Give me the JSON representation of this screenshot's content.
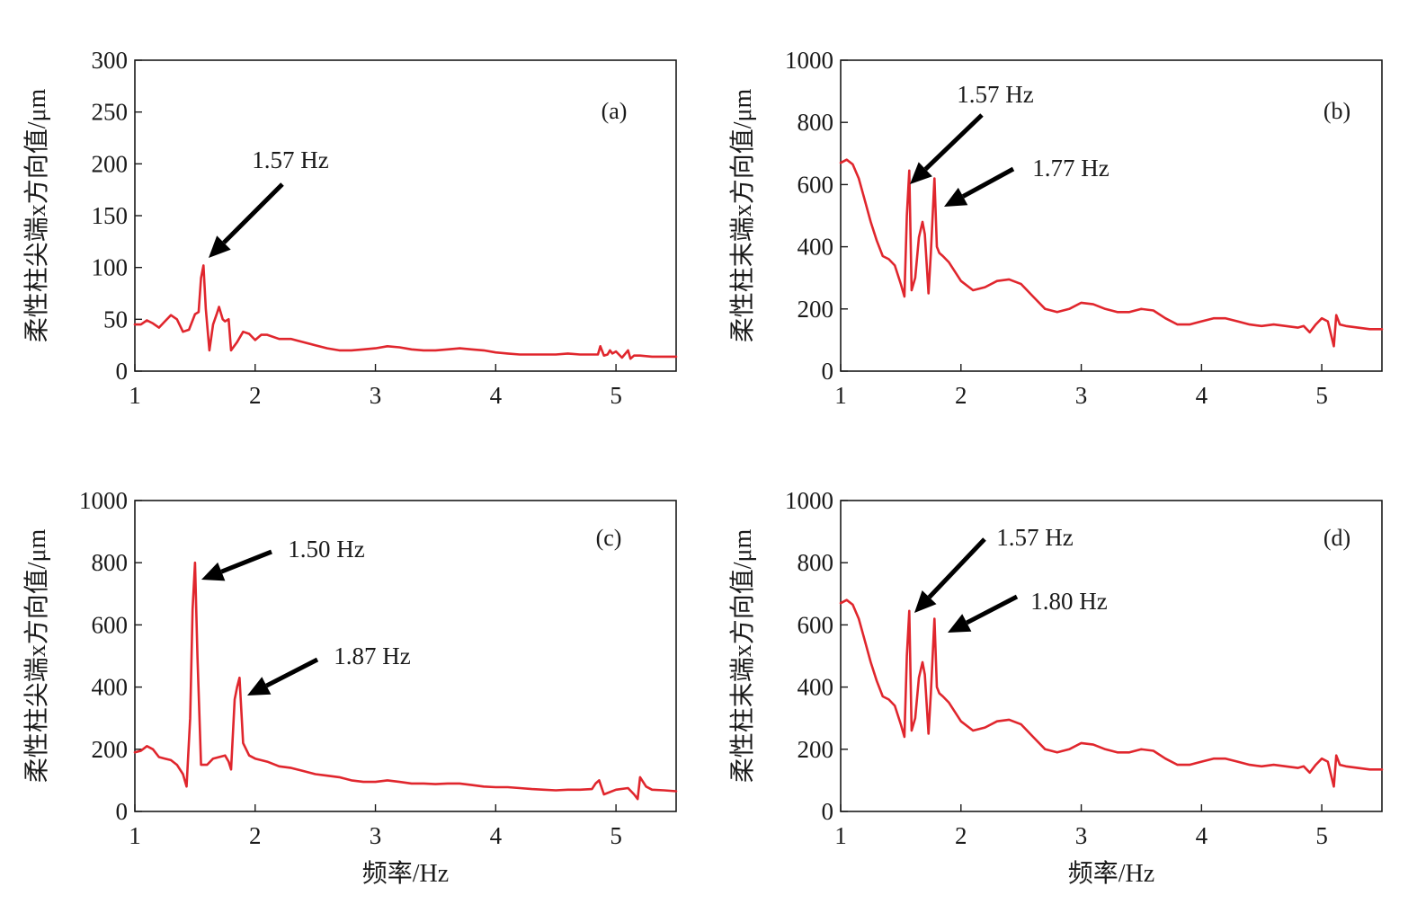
{
  "chart_data": [
    {
      "type": "line",
      "panel": "(a)",
      "xlabel": "",
      "ylabel": "柔性柱尖端x方向值/μm",
      "xlim": [
        1,
        5.5
      ],
      "ylim": [
        0,
        300
      ],
      "xticks": [
        "1",
        "2",
        "3",
        "4",
        "5"
      ],
      "yticks": [
        "0",
        "50",
        "100",
        "150",
        "200",
        "250",
        "300"
      ],
      "color": "#e0262d",
      "annotations": [
        {
          "text": "1.57 Hz",
          "x": 1.57,
          "y": 102
        }
      ],
      "series": [
        {
          "x": [
            1.0,
            1.05,
            1.1,
            1.15,
            1.2,
            1.25,
            1.3,
            1.35,
            1.4,
            1.45,
            1.5,
            1.53,
            1.55,
            1.57,
            1.59,
            1.62,
            1.65,
            1.68,
            1.7,
            1.73,
            1.75,
            1.78,
            1.8,
            1.85,
            1.9,
            1.95,
            2.0,
            2.05,
            2.1,
            2.2,
            2.3,
            2.4,
            2.5,
            2.6,
            2.7,
            2.8,
            2.9,
            3.0,
            3.1,
            3.2,
            3.3,
            3.4,
            3.5,
            3.6,
            3.7,
            3.8,
            3.9,
            4.0,
            4.1,
            4.2,
            4.3,
            4.4,
            4.5,
            4.6,
            4.7,
            4.8,
            4.85,
            4.87,
            4.9,
            4.93,
            4.95,
            4.97,
            5.0,
            5.05,
            5.1,
            5.12,
            5.15,
            5.2,
            5.3,
            5.4,
            5.5
          ],
          "y": [
            45,
            45,
            49,
            46,
            42,
            48,
            54,
            50,
            38,
            40,
            55,
            57,
            90,
            102,
            60,
            20,
            45,
            55,
            62,
            50,
            48,
            50,
            20,
            28,
            38,
            36,
            30,
            35,
            35,
            31,
            31,
            28,
            25,
            22,
            20,
            20,
            21,
            22,
            24,
            23,
            21,
            20,
            20,
            21,
            22,
            21,
            20,
            18,
            17,
            16,
            16,
            16,
            16,
            17,
            16,
            16,
            16,
            24,
            15,
            16,
            20,
            17,
            19,
            13,
            20,
            12,
            15,
            15,
            14,
            14,
            14
          ]
        }
      ]
    },
    {
      "type": "line",
      "panel": "(b)",
      "xlabel": "",
      "ylabel": "柔性柱末端x方向值/μm",
      "xlim": [
        1,
        5.5
      ],
      "ylim": [
        0,
        1000
      ],
      "xticks": [
        "1",
        "2",
        "3",
        "4",
        "5"
      ],
      "yticks": [
        "0",
        "200",
        "400",
        "600",
        "800",
        "1000"
      ],
      "color": "#e0262d",
      "annotations": [
        {
          "text": "1.57 Hz",
          "x": 1.57,
          "y": 645
        },
        {
          "text": "1.77 Hz",
          "x": 1.8,
          "y": 620
        }
      ],
      "series": [
        {
          "x": [
            1.0,
            1.05,
            1.1,
            1.15,
            1.2,
            1.25,
            1.3,
            1.35,
            1.4,
            1.45,
            1.5,
            1.53,
            1.55,
            1.57,
            1.59,
            1.62,
            1.65,
            1.68,
            1.7,
            1.73,
            1.75,
            1.78,
            1.8,
            1.82,
            1.85,
            1.9,
            2.0,
            2.1,
            2.2,
            2.3,
            2.4,
            2.5,
            2.6,
            2.7,
            2.8,
            2.9,
            3.0,
            3.1,
            3.2,
            3.3,
            3.4,
            3.5,
            3.6,
            3.7,
            3.8,
            3.9,
            4.0,
            4.1,
            4.2,
            4.3,
            4.4,
            4.5,
            4.6,
            4.7,
            4.8,
            4.85,
            4.9,
            4.95,
            5.0,
            5.05,
            5.1,
            5.12,
            5.15,
            5.2,
            5.3,
            5.4,
            5.5
          ],
          "y": [
            670,
            680,
            665,
            620,
            550,
            480,
            420,
            370,
            360,
            340,
            280,
            240,
            500,
            645,
            260,
            300,
            430,
            480,
            440,
            250,
            380,
            620,
            400,
            380,
            370,
            350,
            290,
            260,
            270,
            290,
            295,
            280,
            240,
            200,
            190,
            200,
            220,
            215,
            200,
            190,
            190,
            200,
            195,
            170,
            150,
            150,
            160,
            170,
            170,
            160,
            150,
            145,
            150,
            145,
            140,
            145,
            125,
            150,
            170,
            160,
            80,
            180,
            150,
            145,
            140,
            135,
            135
          ]
        }
      ]
    },
    {
      "type": "line",
      "panel": "(c)",
      "xlabel": "频率/Hz",
      "ylabel": "柔性柱尖端x方向值/μm",
      "xlim": [
        1,
        5.5
      ],
      "ylim": [
        0,
        1000
      ],
      "xticks": [
        "1",
        "2",
        "3",
        "4",
        "5"
      ],
      "yticks": [
        "0",
        "200",
        "400",
        "600",
        "800",
        "1000"
      ],
      "color": "#e0262d",
      "annotations": [
        {
          "text": "1.50 Hz",
          "x": 1.5,
          "y": 800
        },
        {
          "text": "1.87 Hz",
          "x": 1.87,
          "y": 430
        }
      ],
      "series": [
        {
          "x": [
            1.0,
            1.05,
            1.1,
            1.15,
            1.2,
            1.25,
            1.3,
            1.35,
            1.4,
            1.43,
            1.46,
            1.48,
            1.5,
            1.52,
            1.55,
            1.6,
            1.65,
            1.7,
            1.75,
            1.78,
            1.8,
            1.83,
            1.85,
            1.87,
            1.9,
            1.95,
            2.0,
            2.1,
            2.2,
            2.3,
            2.4,
            2.5,
            2.6,
            2.7,
            2.8,
            2.9,
            3.0,
            3.1,
            3.2,
            3.3,
            3.4,
            3.5,
            3.6,
            3.7,
            3.8,
            3.9,
            4.0,
            4.1,
            4.2,
            4.3,
            4.4,
            4.5,
            4.6,
            4.7,
            4.8,
            4.83,
            4.86,
            4.9,
            5.0,
            5.1,
            5.15,
            5.18,
            5.2,
            5.25,
            5.3,
            5.4,
            5.5
          ],
          "y": [
            190,
            195,
            210,
            200,
            175,
            170,
            165,
            150,
            120,
            80,
            300,
            650,
            800,
            500,
            150,
            150,
            170,
            175,
            180,
            160,
            135,
            360,
            400,
            430,
            220,
            180,
            170,
            160,
            145,
            140,
            130,
            120,
            115,
            110,
            100,
            95,
            95,
            100,
            95,
            90,
            90,
            88,
            90,
            90,
            85,
            80,
            78,
            78,
            75,
            72,
            70,
            68,
            70,
            70,
            72,
            90,
            100,
            55,
            70,
            75,
            55,
            40,
            110,
            80,
            70,
            68,
            65
          ]
        }
      ]
    },
    {
      "type": "line",
      "panel": "(d)",
      "xlabel": "频率/Hz",
      "ylabel": "柔性柱末端x方向值/μm",
      "xlim": [
        1,
        5.5
      ],
      "ylim": [
        0,
        1000
      ],
      "xticks": [
        "1",
        "2",
        "3",
        "4",
        "5"
      ],
      "yticks": [
        "0",
        "200",
        "400",
        "600",
        "800",
        "1000"
      ],
      "color": "#e0262d",
      "annotations": [
        {
          "text": "1.57 Hz",
          "x": 1.57,
          "y": 645
        },
        {
          "text": "1.80 Hz",
          "x": 1.8,
          "y": 620
        }
      ],
      "series": [
        {
          "x": [
            1.0,
            1.05,
            1.1,
            1.15,
            1.2,
            1.25,
            1.3,
            1.35,
            1.4,
            1.45,
            1.5,
            1.53,
            1.55,
            1.57,
            1.59,
            1.62,
            1.65,
            1.68,
            1.7,
            1.73,
            1.75,
            1.78,
            1.8,
            1.82,
            1.85,
            1.9,
            2.0,
            2.1,
            2.2,
            2.3,
            2.4,
            2.5,
            2.6,
            2.7,
            2.8,
            2.9,
            3.0,
            3.1,
            3.2,
            3.3,
            3.4,
            3.5,
            3.6,
            3.7,
            3.8,
            3.9,
            4.0,
            4.1,
            4.2,
            4.3,
            4.4,
            4.5,
            4.6,
            4.7,
            4.8,
            4.85,
            4.9,
            4.95,
            5.0,
            5.05,
            5.1,
            5.12,
            5.15,
            5.2,
            5.3,
            5.4,
            5.5
          ],
          "y": [
            670,
            680,
            665,
            620,
            550,
            480,
            420,
            370,
            360,
            340,
            280,
            240,
            500,
            645,
            260,
            300,
            430,
            480,
            440,
            250,
            380,
            620,
            400,
            380,
            370,
            350,
            290,
            260,
            270,
            290,
            295,
            280,
            240,
            200,
            190,
            200,
            220,
            215,
            200,
            190,
            190,
            200,
            195,
            170,
            150,
            150,
            160,
            170,
            170,
            160,
            150,
            145,
            150,
            145,
            140,
            145,
            125,
            150,
            170,
            160,
            80,
            180,
            150,
            145,
            140,
            135,
            135
          ]
        }
      ]
    }
  ]
}
